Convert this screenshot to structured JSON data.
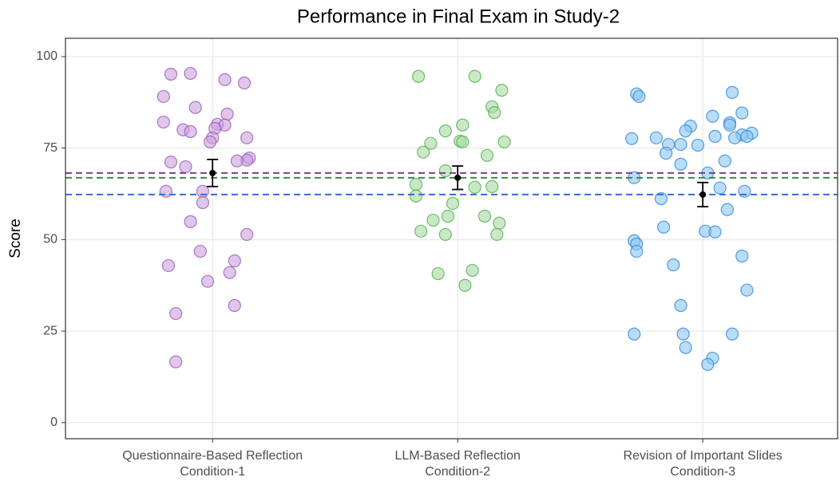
{
  "chart_data": {
    "type": "strip",
    "title": "Performance in Final Exam in Study-2",
    "y_label": "Score",
    "xlim": [
      0.4,
      3.55
    ],
    "xticks": [
      {
        "value": 1,
        "label": [
          "Questionnaire-Based Reflection",
          "Condition-1"
        ]
      },
      {
        "value": 2,
        "label": [
          "LLM-Based Reflection",
          "Condition-2"
        ]
      },
      {
        "value": 3,
        "label": [
          "Revision of Important Slides",
          "Condition-3"
        ]
      }
    ],
    "ylim": [
      -4.4,
      105
    ],
    "yticks": [
      0,
      25,
      50,
      75,
      100
    ],
    "grid": true,
    "series": [
      {
        "color": "#c9a0dc",
        "stroke": "#9b59b6",
        "line_color": "#7b3f8c",
        "position": 1,
        "mean": 68.2,
        "error": 3.7,
        "x": [
          0.83,
          0.91,
          1.05,
          1.13,
          0.8,
          0.93,
          1.06,
          0.8,
          1.02,
          1.05,
          0.88,
          0.91,
          1.01,
          1.14,
          1.0,
          0.99,
          1.15,
          1.14,
          1.1,
          0.83,
          0.89,
          0.96,
          0.81,
          0.96,
          0.91,
          1.14,
          0.95,
          1.09,
          0.82,
          1.07,
          0.98,
          1.09,
          0.85,
          0.85
        ],
        "values": [
          95.2,
          95.4,
          93.7,
          92.8,
          89.1,
          86.1,
          84.3,
          82.1,
          81.5,
          81.3,
          80.0,
          79.5,
          80.4,
          77.8,
          77.8,
          76.7,
          72.3,
          71.7,
          71.5,
          71.2,
          69.9,
          63.2,
          63.2,
          60.1,
          54.9,
          51.4,
          46.8,
          44.2,
          42.9,
          41.0,
          38.6,
          32.0,
          29.8,
          16.6
        ]
      },
      {
        "color": "#a8d8a0",
        "stroke": "#4caf50",
        "line_color": "#3b8a4a",
        "position": 2,
        "mean": 66.9,
        "error": 3.2,
        "x": [
          1.84,
          2.07,
          2.18,
          2.14,
          2.15,
          2.02,
          1.95,
          1.89,
          2.01,
          2.02,
          2.19,
          1.86,
          2.12,
          1.95,
          1.83,
          2.07,
          2.14,
          1.83,
          1.98,
          2.11,
          1.96,
          1.9,
          2.17,
          1.85,
          2.16,
          1.95,
          2.06,
          1.92,
          2.03
        ],
        "values": [
          94.6,
          94.6,
          90.8,
          86.3,
          84.7,
          81.3,
          79.7,
          76.3,
          76.9,
          76.7,
          76.7,
          73.9,
          73.0,
          68.8,
          65.1,
          64.3,
          64.5,
          61.9,
          59.9,
          56.4,
          56.4,
          55.3,
          54.5,
          52.3,
          51.4,
          51.4,
          41.6,
          40.7,
          37.5
        ]
      },
      {
        "color": "#8ac6f2",
        "stroke": "#2e86de",
        "line_color": "#2f6fd6",
        "position": 3,
        "mean": 62.3,
        "error": 3.3,
        "x": [
          2.73,
          3.12,
          2.74,
          3.04,
          3.16,
          3.11,
          3.11,
          2.95,
          2.93,
          3.2,
          3.16,
          3.05,
          3.18,
          2.81,
          3.13,
          2.71,
          2.86,
          2.91,
          2.98,
          2.85,
          3.09,
          2.91,
          3.02,
          2.72,
          3.07,
          3.17,
          2.83,
          3.1,
          2.84,
          3.01,
          3.05,
          2.72,
          2.73,
          2.73,
          3.16,
          2.88,
          3.18,
          2.91,
          2.72,
          2.92,
          3.12,
          2.93,
          3.04,
          3.02
        ],
        "values": [
          89.8,
          90.2,
          89.1,
          83.7,
          84.6,
          81.9,
          81.3,
          81.0,
          79.7,
          79.1,
          78.6,
          78.2,
          78.2,
          77.8,
          77.8,
          77.6,
          76.0,
          76.0,
          75.8,
          73.6,
          71.5,
          70.6,
          68.2,
          66.9,
          64.1,
          63.2,
          61.2,
          58.2,
          53.4,
          52.3,
          52.1,
          49.7,
          48.8,
          46.8,
          45.5,
          43.1,
          36.2,
          32.0,
          24.2,
          24.2,
          24.2,
          20.5,
          17.6,
          15.9
        ]
      }
    ]
  }
}
